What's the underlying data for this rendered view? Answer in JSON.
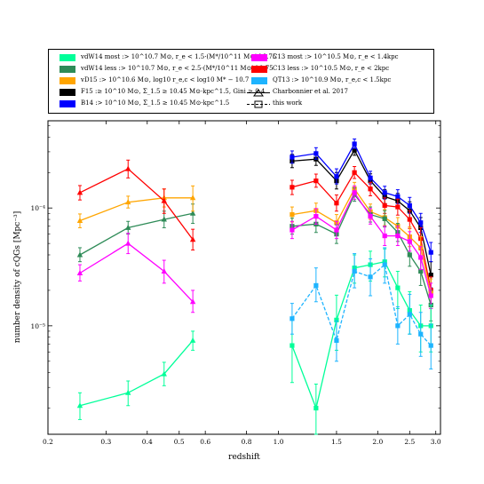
{
  "chart_data": {
    "type": "line",
    "xlabel": "redshift",
    "ylabel": "number density of cQGs [Mpc⁻³]",
    "x_scale": "log",
    "y_scale": "log",
    "xlim": [
      0.2,
      3.1
    ],
    "ylim": [
      1.2e-06,
      0.00055
    ],
    "x_ticks": [
      "0.2",
      "0.3",
      "0.4",
      "0.5",
      "0.6",
      "0.8",
      "1.0",
      "1.5",
      "2.0",
      "2.5",
      "3.0"
    ],
    "y_ticks": [
      "10⁻⁵",
      "10⁻⁴"
    ],
    "series": [
      {
        "name": "vdW14 most :> 10^10.7 M⊙, r_e < 1.5·(M*/10^11 M⊙)^0.75",
        "color": "#00ff99",
        "group": "low-z",
        "x": [
          0.25,
          0.35,
          0.45,
          0.55
        ],
        "y": [
          2.1e-06,
          2.7e-06,
          3.9e-06,
          7.5e-06
        ],
        "err_lo": [
          5e-07,
          6e-07,
          8e-07,
          1.3e-06
        ],
        "err_hi": [
          6e-07,
          7e-07,
          1e-06,
          1.5e-06
        ]
      },
      {
        "name": "vdW14 less :> 10^10.7 M⊙, r_e < 2.5·(M*/10^11 M⊙)^0.75",
        "color": "#2e8b57",
        "group": "low-z",
        "x": [
          0.25,
          0.35,
          0.45,
          0.55
        ],
        "y": [
          4e-05,
          6.8e-05,
          8e-05,
          9e-05
        ],
        "err_lo": [
          5e-06,
          8e-06,
          1.2e-05,
          1.6e-05
        ],
        "err_hi": [
          6e-06,
          9e-06,
          1.4e-05,
          1.8e-05
        ]
      },
      {
        "name": "vD15 :> 10^10.6 M⊙, log10 r_e,c < log10 M* − 10.7",
        "color": "#ffa500",
        "group": "low-z",
        "x": [
          0.25,
          0.35,
          0.45,
          0.55
        ],
        "y": [
          7.8e-05,
          0.000112,
          0.000122,
          0.000122
        ],
        "err_lo": [
          1e-05,
          1.2e-05,
          2e-05,
          2.8e-05
        ],
        "err_hi": [
          1.1e-05,
          1.4e-05,
          2.3e-05,
          3.2e-05
        ]
      },
      {
        "name": "C13 most :> 10^10.5 M⊙, r_e < 1.4kpc",
        "color": "#ff00ff",
        "group": "low-z",
        "x": [
          0.25,
          0.35,
          0.45,
          0.55
        ],
        "y": [
          2.8e-05,
          5e-05,
          2.9e-05,
          1.6e-05
        ],
        "err_lo": [
          4e-06,
          9e-06,
          6e-06,
          3e-06
        ],
        "err_hi": [
          5e-06,
          1.1e-05,
          7e-06,
          4e-06
        ]
      },
      {
        "name": "C13 less :> 10^10.5 M⊙, r_e < 2kpc",
        "color": "#ff0000",
        "group": "low-z",
        "x": [
          0.25,
          0.35,
          0.45,
          0.55
        ],
        "y": [
          0.000135,
          0.000215,
          0.000115,
          5.4e-05
        ],
        "err_lo": [
          1.8e-05,
          3.5e-05,
          2.5e-05,
          1e-05
        ],
        "err_hi": [
          2e-05,
          4e-05,
          3e-05,
          1.2e-05
        ]
      },
      {
        "name": "F15 :≥ 10^10 M⊙, Σ_1.5 ≥ 10.45 M⊙·kpc^1.5, Gini ≥ 0.4",
        "color": "#000000",
        "group": "high-z",
        "x": [
          1.1,
          1.3,
          1.5,
          1.7,
          1.9,
          2.1,
          2.3,
          2.5,
          2.7,
          2.9
        ],
        "y": [
          0.00025,
          0.00026,
          0.00017,
          0.00031,
          0.00017,
          0.000125,
          0.000115,
          9.5e-05,
          6.8e-05,
          2.7e-05
        ],
        "err_lo": [
          3e-05,
          3e-05,
          2.5e-05,
          3e-05,
          2e-05,
          1.6e-05,
          1.6e-05,
          1.5e-05,
          1.3e-05,
          6e-06
        ],
        "err_hi": [
          3.5e-05,
          3.5e-05,
          3e-05,
          3.5e-05,
          2.5e-05,
          1.8e-05,
          1.8e-05,
          1.8e-05,
          1.5e-05,
          8e-06
        ]
      },
      {
        "name": "B14 :> 10^10 M⊙, Σ_1.5 ≥ 10.45 M⊙·kpc^1.5",
        "color": "#0000ff",
        "group": "high-z",
        "x": [
          1.1,
          1.3,
          1.5,
          1.7,
          1.9,
          2.1,
          2.3,
          2.5,
          2.7,
          2.9
        ],
        "y": [
          0.00027,
          0.00029,
          0.000185,
          0.00035,
          0.00018,
          0.000135,
          0.000125,
          0.000105,
          7.5e-05,
          4.2e-05
        ],
        "err_lo": [
          3e-05,
          3e-05,
          2.5e-05,
          3e-05,
          2e-05,
          1.6e-05,
          1.6e-05,
          1.5e-05,
          1.3e-05,
          7e-06
        ],
        "err_hi": [
          3.5e-05,
          3.5e-05,
          3e-05,
          3.5e-05,
          2.5e-05,
          1.8e-05,
          1.8e-05,
          1.8e-05,
          1.5e-05,
          9e-06
        ]
      },
      {
        "name": "C13 less (high-z)",
        "color": "#ff0000",
        "group": "high-z",
        "x": [
          1.1,
          1.3,
          1.5,
          1.7,
          1.9,
          2.1,
          2.3,
          2.5,
          2.7,
          2.9
        ],
        "y": [
          0.00015,
          0.00017,
          0.00011,
          0.0002,
          0.000145,
          0.000105,
          0.000102,
          8e-05,
          5.5e-05,
          2e-05
        ],
        "err_lo": [
          2e-05,
          2e-05,
          1.6e-05,
          2.2e-05,
          1.8e-05,
          1.5e-05,
          1.5e-05,
          1.3e-05,
          1.1e-05,
          5e-06
        ],
        "err_hi": [
          2.2e-05,
          2.4e-05,
          1.9e-05,
          2.5e-05,
          2e-05,
          1.7e-05,
          1.7e-05,
          1.5e-05,
          1.3e-05,
          6e-06
        ]
      },
      {
        "name": "vD15 (high-z)",
        "color": "#ffa500",
        "group": "high-z",
        "x": [
          1.1,
          1.3,
          1.5,
          1.7,
          1.9,
          2.1,
          2.3,
          2.5,
          2.7,
          2.9
        ],
        "y": [
          8.8e-05,
          9.5e-05,
          7.5e-05,
          0.000145,
          9.3e-05,
          8.3e-05,
          7e-05,
          5.7e-05,
          4.6e-05,
          1.9e-05
        ],
        "err_lo": [
          1.2e-05,
          1.3e-05,
          1.1e-05,
          1.8e-05,
          1.3e-05,
          1.2e-05,
          1.1e-05,
          1e-05,
          9e-06,
          5e-06
        ],
        "err_hi": [
          1.4e-05,
          1.5e-05,
          1.3e-05,
          2e-05,
          1.5e-05,
          1.4e-05,
          1.3e-05,
          1.2e-05,
          1.1e-05,
          6e-06
        ]
      },
      {
        "name": "vdW14 less (high-z)",
        "color": "#2e8b57",
        "group": "high-z",
        "x": [
          1.1,
          1.3,
          1.5,
          1.7,
          1.9,
          2.1,
          2.3,
          2.5,
          2.7,
          2.9
        ],
        "y": [
          7e-05,
          7.3e-05,
          6e-05,
          0.00013,
          8.8e-05,
          8.1e-05,
          6.2e-05,
          4e-05,
          2.9e-05,
          1.5e-05
        ],
        "err_lo": [
          1e-05,
          1.1e-05,
          1e-05,
          1.6e-05,
          1.2e-05,
          1.2e-05,
          1e-05,
          8e-06,
          7e-06,
          4e-06
        ],
        "err_hi": [
          1.2e-05,
          1.3e-05,
          1.2e-05,
          1.8e-05,
          1.4e-05,
          1.4e-05,
          1.2e-05,
          1e-05,
          8e-06,
          5e-06
        ]
      },
      {
        "name": "C13 most (high-z)",
        "color": "#ff00ff",
        "group": "high-z",
        "x": [
          1.1,
          1.3,
          1.5,
          1.7,
          1.9,
          2.1,
          2.3,
          2.5,
          2.7,
          2.9
        ],
        "y": [
          6.5e-05,
          8.5e-05,
          6.5e-05,
          0.000135,
          8.5e-05,
          5.8e-05,
          5.8e-05,
          5.2e-05,
          3.8e-05,
          1.8e-05
        ],
        "err_lo": [
          1e-05,
          1.2e-05,
          1e-05,
          1.7e-05,
          1.2e-05,
          1e-05,
          1e-05,
          9e-06,
          8e-06,
          4e-06
        ],
        "err_hi": [
          1.2e-05,
          1.4e-05,
          1.2e-05,
          1.9e-05,
          1.4e-05,
          1.2e-05,
          1.2e-05,
          1.1e-05,
          9e-06,
          5e-06
        ]
      },
      {
        "name": "vdW14 most (high-z)",
        "color": "#00ff99",
        "group": "high-z",
        "x": [
          1.1,
          1.3,
          1.5,
          1.7,
          1.9,
          2.1,
          2.3,
          2.5,
          2.7,
          2.9
        ],
        "y": [
          6.8e-06,
          2e-06,
          1.12e-05,
          3.1e-05,
          3.3e-05,
          3.5e-05,
          2.1e-05,
          1.35e-05,
          1e-05,
          1e-05
        ],
        "err_lo": [
          3.5e-06,
          8e-07,
          5e-06,
          8e-06,
          9e-06,
          9e-06,
          7e-06,
          5e-06,
          4e-06,
          4e-06
        ],
        "err_hi": [
          5e-06,
          1.2e-06,
          7e-06,
          9e-06,
          1e-05,
          1e-05,
          8e-06,
          6e-06,
          5e-06,
          5e-06
        ]
      },
      {
        "name": "QT13 :> 10^10.9 M⊙, r_e,c < 1.5kpc",
        "color": "#1eb4ff",
        "group": "high-z",
        "dashed": true,
        "x": [
          1.1,
          1.3,
          1.5,
          1.7,
          1.9,
          2.1,
          2.3,
          2.5,
          2.7,
          2.9
        ],
        "y": [
          1.15e-05,
          2.2e-05,
          7.5e-06,
          2.9e-05,
          2.6e-05,
          3.3e-05,
          1e-05,
          1.25e-05,
          8.5e-06,
          6.8e-06
        ],
        "err_lo": [
          3e-06,
          6e-06,
          2.5e-06,
          8e-06,
          8e-06,
          1e-05,
          3e-06,
          4e-06,
          3e-06,
          2.5e-06
        ],
        "err_hi": [
          4e-06,
          9e-06,
          3.5e-06,
          1.2e-05,
          1.1e-05,
          1.3e-05,
          4.5e-06,
          6e-06,
          4.5e-06,
          3.5e-06
        ]
      }
    ],
    "legend": {
      "placement": "top",
      "entries": [
        {
          "label": "vdW14 most :> 10^10.7 M⊙, r_e < 1.5·(M*/10^11 M⊙)^0.75",
          "color": "#00ff99",
          "kind": "swatch"
        },
        {
          "label": "vdW14 less :> 10^10.7 M⊙, r_e < 2.5·(M*/10^11 M⊙)^0.75",
          "color": "#2e8b57",
          "kind": "swatch"
        },
        {
          "label": "vD15 :> 10^10.6 M⊙, log10 r_e,c < log10 M* − 10.7",
          "color": "#ffa500",
          "kind": "swatch"
        },
        {
          "label": "F15 :≥ 10^10 M⊙, Σ_1.5 ≥ 10.45 M⊙·kpc^1.5, Gini ≥ 0.4",
          "color": "#000000",
          "kind": "swatch"
        },
        {
          "label": "B14 :> 10^10 M⊙, Σ_1.5 ≥ 10.45 M⊙·kpc^1.5",
          "color": "#0000ff",
          "kind": "swatch"
        },
        {
          "label": "C13 most :> 10^10.5 M⊙, r_e < 1.4kpc",
          "color": "#ff00ff",
          "kind": "swatch"
        },
        {
          "label": "C13 less :> 10^10.5 M⊙, r_e < 2kpc",
          "color": "#ff0000",
          "kind": "swatch"
        },
        {
          "label": "QT13 :> 10^10.9 M⊙, r_e,c < 1.5kpc",
          "color": "#1eb4ff",
          "kind": "swatch"
        },
        {
          "label": "Charbonnier et al. 2017",
          "color": "#000000",
          "kind": "triangle"
        },
        {
          "label": "this work",
          "color": "#000000",
          "kind": "square"
        }
      ]
    }
  }
}
